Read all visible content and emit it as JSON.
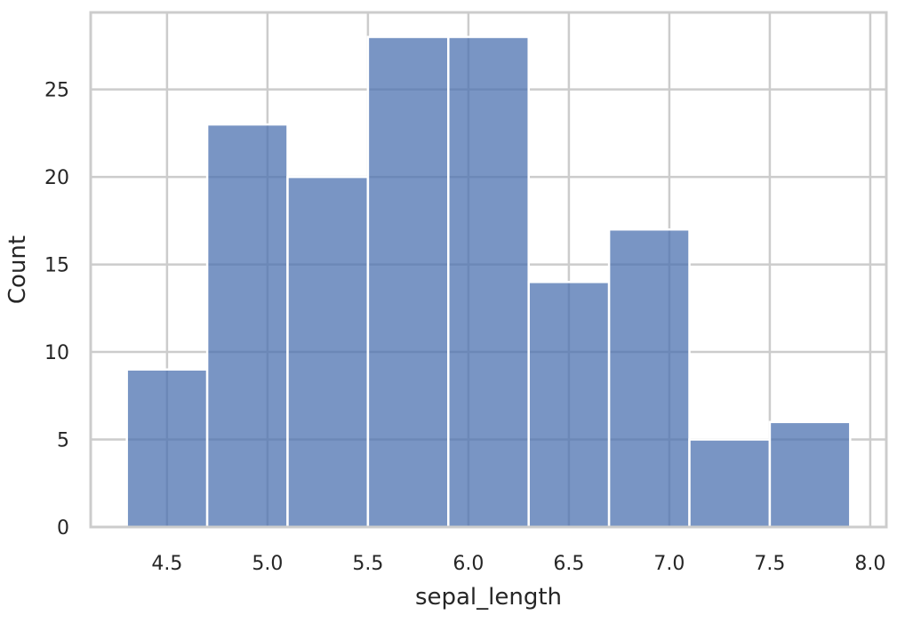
{
  "chart_data": {
    "type": "bar",
    "title": "",
    "xlabel": "sepal_length",
    "ylabel": "Count",
    "bin_edges": [
      4.3,
      4.7,
      5.1,
      5.5,
      5.9,
      6.3,
      6.7,
      7.1,
      7.5,
      7.9
    ],
    "values": [
      9,
      23,
      20,
      28,
      28,
      14,
      17,
      5,
      6
    ],
    "xlim": [
      4.12,
      8.08
    ],
    "ylim": [
      0,
      29.4
    ],
    "xticks": [
      4.5,
      5.0,
      5.5,
      6.0,
      6.5,
      7.0,
      7.5,
      8.0
    ],
    "xtick_labels": [
      "4.5",
      "5.0",
      "5.5",
      "6.0",
      "6.5",
      "7.0",
      "7.5",
      "8.0"
    ],
    "yticks": [
      0,
      5,
      10,
      15,
      20,
      25
    ],
    "ytick_labels": [
      "0",
      "5",
      "10",
      "15",
      "20",
      "25"
    ],
    "grid": true,
    "bar_color": "#4c72b0",
    "grid_color": "#cccccc"
  }
}
